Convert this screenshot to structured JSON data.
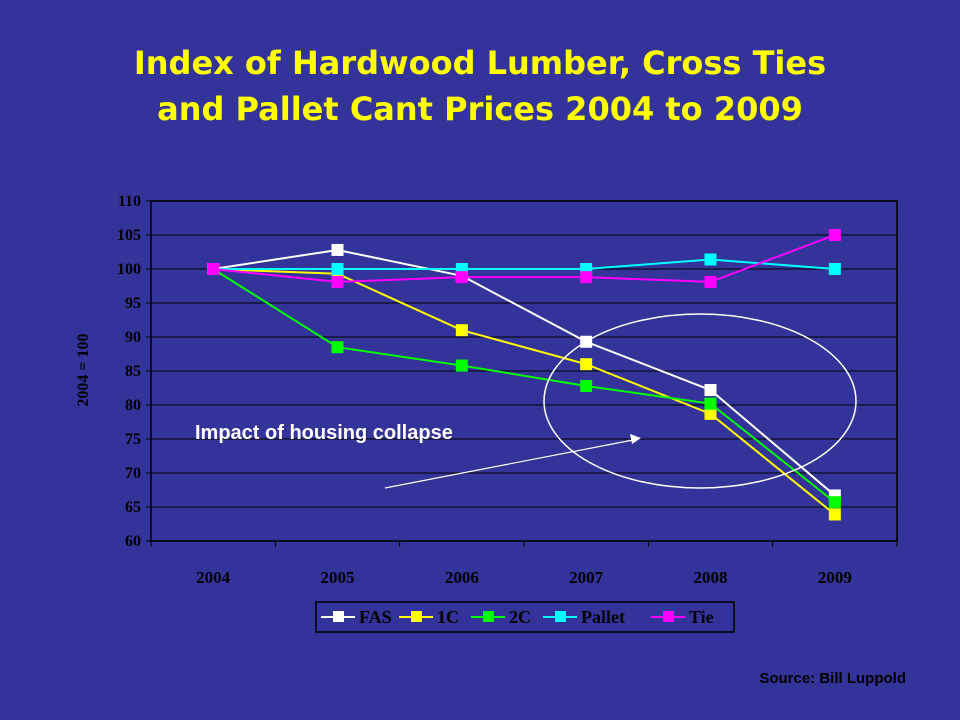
{
  "slide": {
    "title_line1": "Index of Hardwood Lumber, Cross Ties",
    "title_line2": "and Pallet Cant Prices 2004 to 2009",
    "source": "Source: Bill Luppold",
    "annotation": "Impact of housing collapse"
  },
  "colors": {
    "background": "#333399",
    "title": "#ffff00",
    "plot_area": "#ffffff",
    "gridline": "#000000"
  },
  "chart_data": {
    "type": "line",
    "title": "",
    "xlabel": "",
    "ylabel": "2004 = 100",
    "categories": [
      "2004",
      "2005",
      "2006",
      "2007",
      "2008",
      "2009"
    ],
    "ylim": [
      60,
      110
    ],
    "yticks": [
      60,
      65,
      70,
      75,
      80,
      85,
      90,
      95,
      100,
      105,
      110
    ],
    "grid": true,
    "legend_position": "bottom",
    "series": [
      {
        "name": "FAS",
        "color": "#ffffff",
        "values": [
          100,
          102.8,
          99,
          89.3,
          82.2,
          66.7
        ]
      },
      {
        "name": "1C",
        "color": "#ffff00",
        "values": [
          100,
          99.3,
          91,
          86,
          78.7,
          63.9
        ]
      },
      {
        "name": "2C",
        "color": "#00ff00",
        "values": [
          100,
          88.5,
          85.8,
          82.8,
          80.2,
          65.7
        ]
      },
      {
        "name": "Pallet",
        "color": "#00ffff",
        "values": [
          100,
          100,
          100,
          100,
          101.4,
          100
        ]
      },
      {
        "name": "Tie",
        "color": "#ff00ff",
        "values": [
          100,
          98.1,
          98.8,
          98.8,
          98.1,
          105
        ]
      }
    ]
  }
}
